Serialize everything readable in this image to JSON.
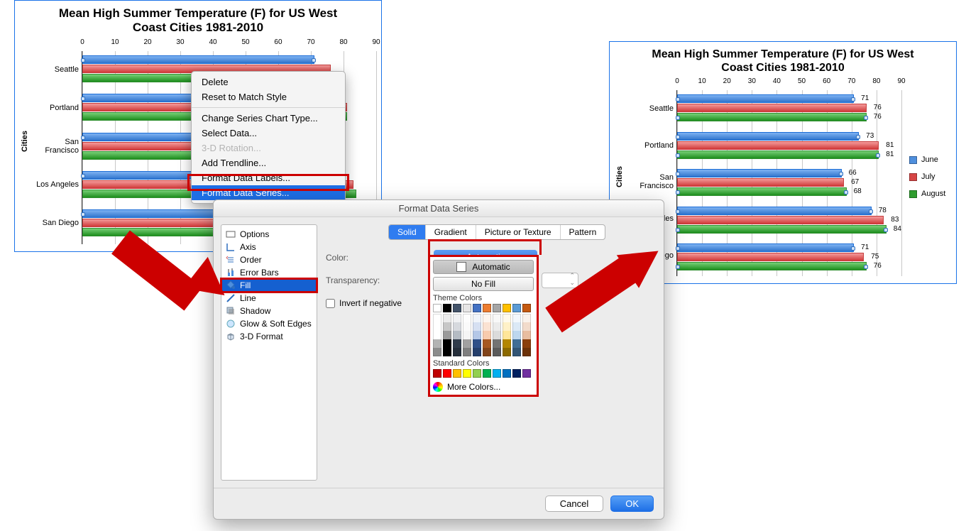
{
  "chart": {
    "title_line1": "Mean High Summer Temperature (F) for US West",
    "title_line2": "Coast Cities 1981-2010",
    "y_axis_label": "Cities",
    "categories": [
      "Seattle",
      "Portland",
      "San Francisco",
      "Los Angeles",
      "San Diego"
    ],
    "x_ticks": [
      0,
      10,
      20,
      30,
      40,
      50,
      60,
      70,
      80,
      90
    ],
    "x_max": 90,
    "series": [
      {
        "name": "June",
        "color_fill": "#4f8fdd",
        "values": [
          71,
          73,
          66,
          78,
          71
        ]
      },
      {
        "name": "July",
        "color_fill": "#d64545",
        "values": [
          76,
          81,
          67,
          83,
          75
        ]
      },
      {
        "name": "August",
        "color_fill": "#2f9c2f",
        "values": [
          76,
          81,
          68,
          84,
          76
        ]
      }
    ],
    "grid_color": "#c8c8c8",
    "border_color": "#1a73e8",
    "plot_bg": "#ffffff"
  },
  "context_menu": {
    "items": [
      {
        "label": "Delete",
        "disabled": false
      },
      {
        "label": "Reset to Match Style",
        "disabled": false
      },
      {
        "sep": true
      },
      {
        "label": "Change Series Chart Type...",
        "disabled": false
      },
      {
        "label": "Select Data...",
        "disabled": false
      },
      {
        "label": "3-D Rotation...",
        "disabled": true
      },
      {
        "label": "Add Trendline...",
        "disabled": false
      },
      {
        "label": "Format Data Labels...",
        "disabled": false
      },
      {
        "label": "Format Data Series...",
        "disabled": false,
        "selected": true,
        "highlight_box": true
      }
    ]
  },
  "dialog": {
    "title": "Format Data Series",
    "sidebar": [
      {
        "label": "Options",
        "icon": "options-icon"
      },
      {
        "label": "Axis",
        "icon": "axis-icon"
      },
      {
        "label": "Order",
        "icon": "order-icon"
      },
      {
        "label": "Error Bars",
        "icon": "errorbars-icon"
      },
      {
        "label": "Fill",
        "icon": "fill-icon",
        "selected": true,
        "highlight_box": true
      },
      {
        "label": "Line",
        "icon": "line-icon"
      },
      {
        "label": "Shadow",
        "icon": "shadow-icon"
      },
      {
        "label": "Glow & Soft Edges",
        "icon": "glow-icon"
      },
      {
        "label": "3-D Format",
        "icon": "threed-icon"
      }
    ],
    "tabs": {
      "items": [
        "Solid",
        "Gradient",
        "Picture or Texture",
        "Pattern"
      ],
      "selected": 0
    },
    "color_label": "Color:",
    "color_button": "Automatic",
    "transparency_label": "Transparency:",
    "invert_label": "Invert if negative",
    "invert_checked": false,
    "cancel": "Cancel",
    "ok": "OK"
  },
  "color_popup": {
    "automatic": "Automatic",
    "nofill": "No Fill",
    "theme_header": "Theme Colors",
    "theme_base": [
      "#ffffff",
      "#000000",
      "#44546a",
      "#e7e6e6",
      "#4472c4",
      "#ed7d31",
      "#a5a5a5",
      "#ffc000",
      "#5b9bd5",
      "#c55a11"
    ],
    "theme_shade_steps": [
      0.92,
      0.78,
      0.6,
      0.4,
      0.25
    ],
    "standard_header": "Standard Colors",
    "standard": [
      "#c00000",
      "#ff0000",
      "#ffc000",
      "#ffff00",
      "#92d050",
      "#00b050",
      "#00b0f0",
      "#0070c0",
      "#002060",
      "#7030a0"
    ],
    "more": "More Colors..."
  },
  "highlight_color": "#cc0000"
}
